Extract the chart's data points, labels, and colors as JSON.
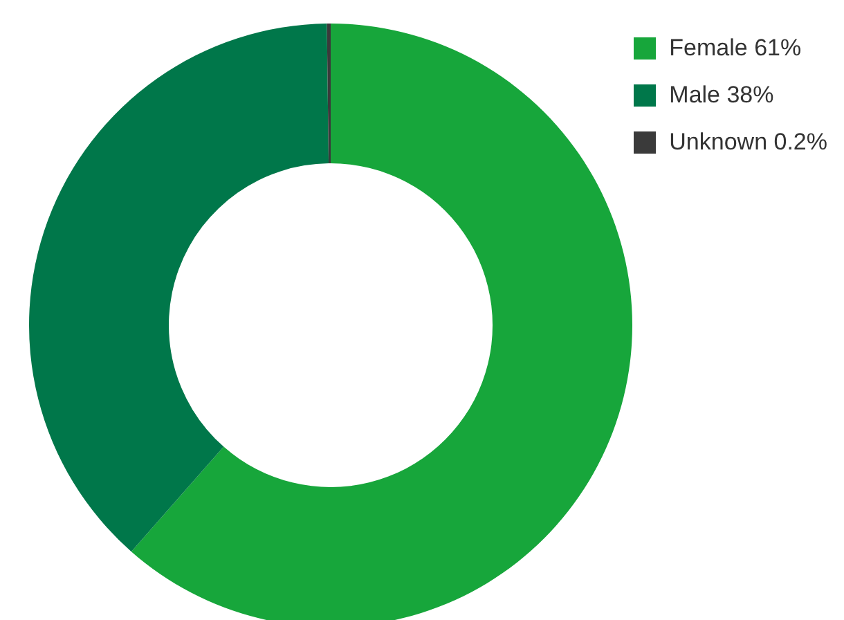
{
  "chart_data": {
    "type": "donut",
    "categories": [
      "Female",
      "Male",
      "Unknown"
    ],
    "values": [
      61,
      38,
      0.2
    ],
    "value_labels": [
      "61%",
      "38%",
      "0.2%"
    ],
    "colors": [
      "#17a63b",
      "#00774a",
      "#3a3a3a"
    ],
    "legend": "top right"
  }
}
